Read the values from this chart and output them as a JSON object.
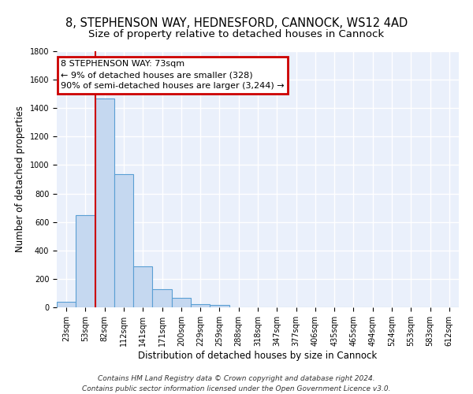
{
  "title_line1": "8, STEPHENSON WAY, HEDNESFORD, CANNOCK, WS12 4AD",
  "title_line2": "Size of property relative to detached houses in Cannock",
  "xlabel": "Distribution of detached houses by size in Cannock",
  "ylabel": "Number of detached properties",
  "bar_color": "#c5d8f0",
  "bar_edge_color": "#5a9fd4",
  "background_color": "#eaf0fb",
  "grid_color": "#ffffff",
  "categories": [
    "23sqm",
    "53sqm",
    "82sqm",
    "112sqm",
    "141sqm",
    "171sqm",
    "200sqm",
    "229sqm",
    "259sqm",
    "288sqm",
    "318sqm",
    "347sqm",
    "377sqm",
    "406sqm",
    "435sqm",
    "465sqm",
    "494sqm",
    "524sqm",
    "553sqm",
    "583sqm",
    "612sqm"
  ],
  "values": [
    40,
    650,
    1470,
    935,
    290,
    125,
    65,
    22,
    15,
    0,
    0,
    0,
    0,
    0,
    0,
    0,
    0,
    0,
    0,
    0,
    0
  ],
  "ylim": [
    0,
    1800
  ],
  "yticks": [
    0,
    200,
    400,
    600,
    800,
    1000,
    1200,
    1400,
    1600,
    1800
  ],
  "property_line_x": 1.5,
  "annotation_text_line1": "8 STEPHENSON WAY: 73sqm",
  "annotation_text_line2": "← 9% of detached houses are smaller (328)",
  "annotation_text_line3": "90% of semi-detached houses are larger (3,244) →",
  "annotation_box_color": "#ffffff",
  "annotation_border_color": "#cc0000",
  "footer_line1": "Contains HM Land Registry data © Crown copyright and database right 2024.",
  "footer_line2": "Contains public sector information licensed under the Open Government Licence v3.0.",
  "title_fontsize": 10.5,
  "subtitle_fontsize": 9.5,
  "axis_label_fontsize": 8.5,
  "tick_fontsize": 7,
  "annotation_fontsize": 8,
  "footer_fontsize": 6.5
}
